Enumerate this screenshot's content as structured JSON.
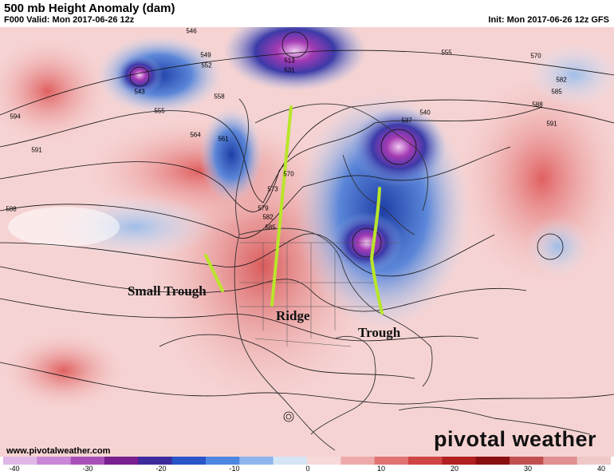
{
  "header": {
    "title": "500 mb Height Anomaly (dam)",
    "valid": "F000 Valid: Mon 2017-06-26 12z",
    "init": "Init: Mon 2017-06-26 12z GFS"
  },
  "annotations": {
    "small_trough": "Small Trough",
    "ridge": "Ridge",
    "trough": "Trough"
  },
  "footer": {
    "website": "www.pivotalweather.com",
    "brand": "pivotal weather"
  },
  "contour_labels": [
    "546",
    "549",
    "552",
    "555",
    "558",
    "561",
    "564",
    "591",
    "588",
    "585",
    "582",
    "579",
    "573",
    "570",
    "543",
    "537",
    "540",
    "513",
    "531",
    "594",
    "555",
    "570",
    "582",
    "585",
    "588",
    "591"
  ],
  "colorbar": {
    "ticks": [
      "-40",
      "-30",
      "-20",
      "-10",
      "0",
      "10",
      "20",
      "30",
      "40"
    ],
    "colors": [
      "#e0b8e8",
      "#c987d6",
      "#a94fb9",
      "#7a1f8f",
      "#3d2b9e",
      "#2a55c8",
      "#4d86e0",
      "#8fb6ec",
      "#d6e5f5",
      "#f7d9d9",
      "#eeaaaa",
      "#e07373",
      "#cf4444",
      "#b02020",
      "#8a1010",
      "#c05050",
      "#e09090",
      "#f0c8c8"
    ],
    "accent_trough_line": "#b9e62a"
  }
}
